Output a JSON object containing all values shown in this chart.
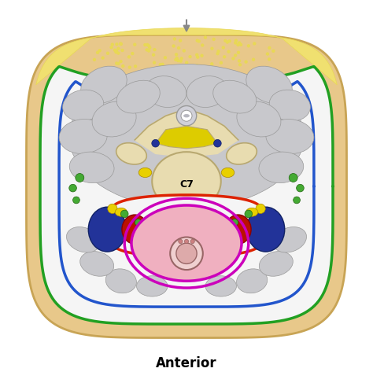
{
  "title": "Anterior",
  "title_fontsize": 12,
  "title_fontweight": "bold",
  "bg_color": "#ffffff",
  "fig_width": 4.74,
  "fig_height": 4.87,
  "skin_color": "#e8c88a",
  "skin_edge": "#c8a455",
  "fat_color": "#f0e070",
  "fat_texture": "#e8d855",
  "green_color": "#22a022",
  "blue_color": "#2255cc",
  "red_color": "#dd2200",
  "magenta_color": "#cc00bb",
  "yellow_color": "#ddcc00",
  "muscle_fill": "#c8c8cc",
  "muscle_edge": "#999999",
  "white_fill": "#f5f5f5",
  "vertebra_fill": "#e8dcb0",
  "vertebra_edge": "#b8a870",
  "spinal_fill": "#d0d0d8",
  "vein_fill": "#223399",
  "artery_fill": "#bb1100",
  "nerve_yellow": "#e8d000",
  "lymph_green": "#44aa33",
  "thyroid_pink": "#f0b0c0",
  "trachea_fill": "#f0d0d0",
  "trachea_dark": "#cc8888"
}
